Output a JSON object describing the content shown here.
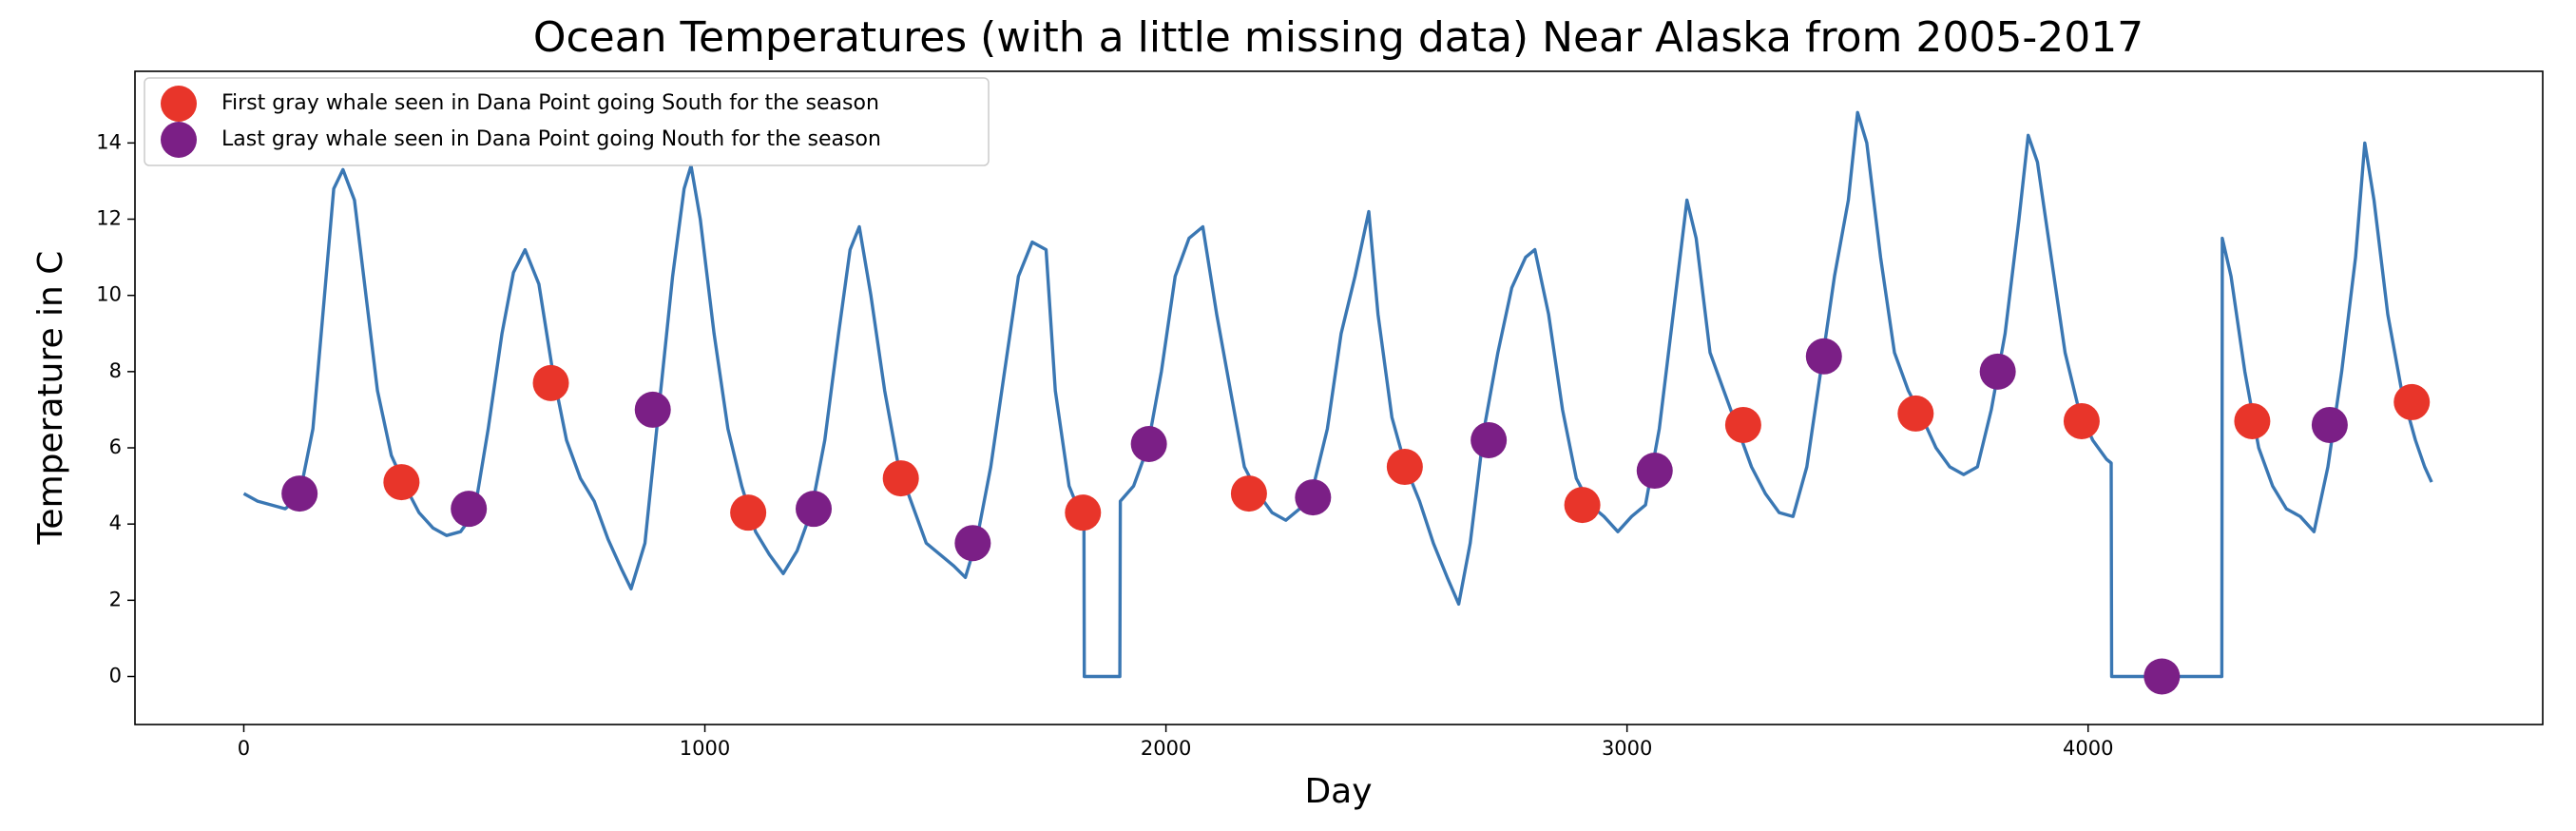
{
  "chart_data": {
    "type": "line",
    "title": "Ocean Temperatures (with a little missing data) Near Alaska from 2005-2017",
    "xlabel": "Day",
    "ylabel": "Temperature in C",
    "xlim": [
      -236,
      4986
    ],
    "ylim": [
      -1.26,
      15.88
    ],
    "xticks": [
      0,
      1000,
      2000,
      3000,
      4000
    ],
    "yticks": [
      0,
      2,
      4,
      6,
      8,
      10,
      12,
      14
    ],
    "legend": "upper left",
    "series": [
      {
        "type": "line",
        "color": "#3a77b3",
        "x": [
          0,
          30,
          60,
          90,
          120,
          150,
          175,
          195,
          215,
          240,
          265,
          290,
          320,
          350,
          380,
          410,
          440,
          470,
          500,
          530,
          560,
          585,
          610,
          640,
          670,
          700,
          730,
          760,
          790,
          820,
          840,
          870,
          900,
          930,
          955,
          970,
          990,
          1020,
          1050,
          1080,
          1110,
          1140,
          1170,
          1200,
          1230,
          1260,
          1290,
          1315,
          1335,
          1360,
          1390,
          1420,
          1450,
          1480,
          1510,
          1540,
          1565,
          1590,
          1620,
          1650,
          1680,
          1710,
          1740,
          1760,
          1790,
          1810,
          1822,
          1823,
          1900,
          1901,
          1930,
          1960,
          1990,
          2020,
          2050,
          2080,
          2110,
          2140,
          2170,
          2200,
          2230,
          2260,
          2290,
          2320,
          2350,
          2380,
          2410,
          2440,
          2460,
          2490,
          2520,
          2550,
          2580,
          2610,
          2635,
          2660,
          2690,
          2720,
          2750,
          2780,
          2800,
          2830,
          2860,
          2890,
          2920,
          2950,
          2980,
          3010,
          3040,
          3070,
          3100,
          3130,
          3150,
          3180,
          3210,
          3240,
          3270,
          3300,
          3330,
          3360,
          3390,
          3420,
          3450,
          3480,
          3500,
          3520,
          3550,
          3580,
          3610,
          3640,
          3670,
          3700,
          3730,
          3760,
          3790,
          3820,
          3850,
          3870,
          3890,
          3920,
          3950,
          3980,
          4010,
          4040,
          4050,
          4051,
          4290,
          4291,
          4310,
          4340,
          4370,
          4400,
          4430,
          4460,
          4490,
          4520,
          4550,
          4580,
          4600,
          4620,
          4650,
          4680,
          4710,
          4730,
          4745
        ],
        "values": [
          4.8,
          4.6,
          4.5,
          4.4,
          4.7,
          6.5,
          10,
          12.8,
          13.3,
          12.5,
          10,
          7.5,
          5.8,
          5.0,
          4.3,
          3.9,
          3.7,
          3.8,
          4.3,
          6.5,
          9,
          10.6,
          11.2,
          10.3,
          8,
          6.2,
          5.2,
          4.6,
          3.6,
          2.8,
          2.3,
          3.5,
          7,
          10.5,
          12.8,
          13.4,
          12,
          9,
          6.5,
          5.0,
          3.8,
          3.2,
          2.7,
          3.3,
          4.3,
          6.2,
          9,
          11.2,
          11.8,
          10,
          7.5,
          5.5,
          4.5,
          3.5,
          3.2,
          2.9,
          2.6,
          3.6,
          5.5,
          8,
          10.5,
          11.4,
          11.2,
          7.5,
          5.0,
          4.4,
          4.3,
          0,
          0,
          4.6,
          5,
          6,
          8,
          10.5,
          11.5,
          11.8,
          9.5,
          7.5,
          5.5,
          4.8,
          4.3,
          4.1,
          4.4,
          5,
          6.5,
          9,
          10.5,
          12.2,
          9.5,
          6.8,
          5.5,
          4.6,
          3.5,
          2.6,
          1.9,
          3.5,
          6.5,
          8.5,
          10.2,
          11,
          11.2,
          9.5,
          7,
          5.2,
          4.5,
          4.2,
          3.8,
          4.2,
          4.5,
          6.5,
          9.5,
          12.5,
          11.5,
          8.5,
          7.5,
          6.5,
          5.5,
          4.8,
          4.3,
          4.2,
          5.5,
          8,
          10.5,
          12.5,
          14.8,
          14,
          11,
          8.5,
          7.5,
          6.8,
          6,
          5.5,
          5.3,
          5.5,
          7,
          9,
          12,
          14.2,
          13.5,
          11,
          8.5,
          7,
          6.2,
          5.7,
          5.6,
          0,
          0,
          11.5,
          10.5,
          8,
          6,
          5,
          4.4,
          4.2,
          3.8,
          5.5,
          8,
          11,
          14,
          12.5,
          9.5,
          7.5,
          6.2,
          5.5,
          5.1
        ]
      },
      {
        "type": "scatter",
        "name": "First gray whale seen in Dana Point going South for the season",
        "color": "#e8352a",
        "x": [
          342,
          666,
          1094,
          1425,
          1820,
          2180,
          2518,
          2903,
          3252,
          3626,
          3986,
          4356,
          4702
        ],
        "values": [
          5.1,
          7.7,
          4.3,
          5.2,
          4.3,
          4.8,
          5.5,
          4.5,
          6.6,
          6.9,
          6.7,
          6.7,
          7.2
        ]
      },
      {
        "type": "scatter",
        "name": "Last gray whale seen in Dana Point going Nouth for the season",
        "color": "#7b1f86",
        "x": [
          121,
          488,
          887,
          1236,
          1581,
          1963,
          2319,
          2700,
          3060,
          3427,
          3804,
          4160,
          4524
        ],
        "values": [
          4.8,
          4.4,
          7.0,
          4.4,
          3.5,
          6.1,
          4.7,
          6.2,
          5.4,
          8.4,
          8.0,
          0,
          6.6
        ]
      }
    ]
  }
}
